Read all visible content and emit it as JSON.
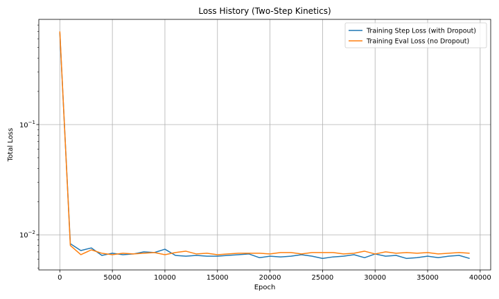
{
  "chart_data": {
    "type": "line",
    "title": "Loss History (Two-Step Kinetics)",
    "xlabel": "Epoch",
    "ylabel": "Total Loss",
    "yscale": "log",
    "xlim": [
      -2000,
      41000
    ],
    "ylim": [
      0.0048,
      0.9
    ],
    "grid": true,
    "legend_position": "top-right",
    "x_ticks": [
      0,
      5000,
      10000,
      15000,
      20000,
      25000,
      30000,
      35000,
      40000
    ],
    "x_tick_labels": [
      "0",
      "5000",
      "10000",
      "15000",
      "20000",
      "25000",
      "30000",
      "35000",
      "40000"
    ],
    "y_major_ticks": [
      0.01,
      0.1
    ],
    "y_major_tick_labels": [
      "10",
      "10"
    ],
    "y_major_tick_exponents": [
      "−2",
      "−1"
    ],
    "x": [
      0,
      1000,
      2000,
      3000,
      4000,
      5000,
      6000,
      7000,
      8000,
      9000,
      10000,
      11000,
      12000,
      13000,
      14000,
      15000,
      16000,
      17000,
      18000,
      19000,
      20000,
      21000,
      22000,
      23000,
      24000,
      25000,
      26000,
      27000,
      28000,
      29000,
      30000,
      31000,
      32000,
      33000,
      34000,
      35000,
      36000,
      37000,
      38000,
      39000
    ],
    "series": [
      {
        "name": "Training Step Loss (with Dropout)",
        "color": "#1f77b4",
        "values": [
          0.68,
          0.0083,
          0.0072,
          0.0076,
          0.0065,
          0.0068,
          0.0066,
          0.0067,
          0.007,
          0.0069,
          0.0074,
          0.0065,
          0.0064,
          0.0065,
          0.0064,
          0.0064,
          0.0065,
          0.0066,
          0.0067,
          0.0062,
          0.0064,
          0.0063,
          0.0064,
          0.0066,
          0.0064,
          0.0061,
          0.0063,
          0.0064,
          0.0066,
          0.0062,
          0.0067,
          0.0064,
          0.0065,
          0.0061,
          0.0062,
          0.0064,
          0.0062,
          0.0064,
          0.0065,
          0.0061
        ]
      },
      {
        "name": "Training Eval Loss (no Dropout)",
        "color": "#ff7f0e",
        "values": [
          0.7,
          0.008,
          0.0066,
          0.0073,
          0.0068,
          0.0066,
          0.0068,
          0.0067,
          0.0068,
          0.0069,
          0.0066,
          0.0069,
          0.0071,
          0.0067,
          0.0068,
          0.0066,
          0.0067,
          0.0068,
          0.0068,
          0.0068,
          0.0067,
          0.0069,
          0.0069,
          0.0067,
          0.0069,
          0.0069,
          0.0069,
          0.0067,
          0.0068,
          0.0071,
          0.0067,
          0.007,
          0.0068,
          0.0069,
          0.0068,
          0.0069,
          0.0067,
          0.0068,
          0.0069,
          0.0068
        ]
      }
    ]
  }
}
